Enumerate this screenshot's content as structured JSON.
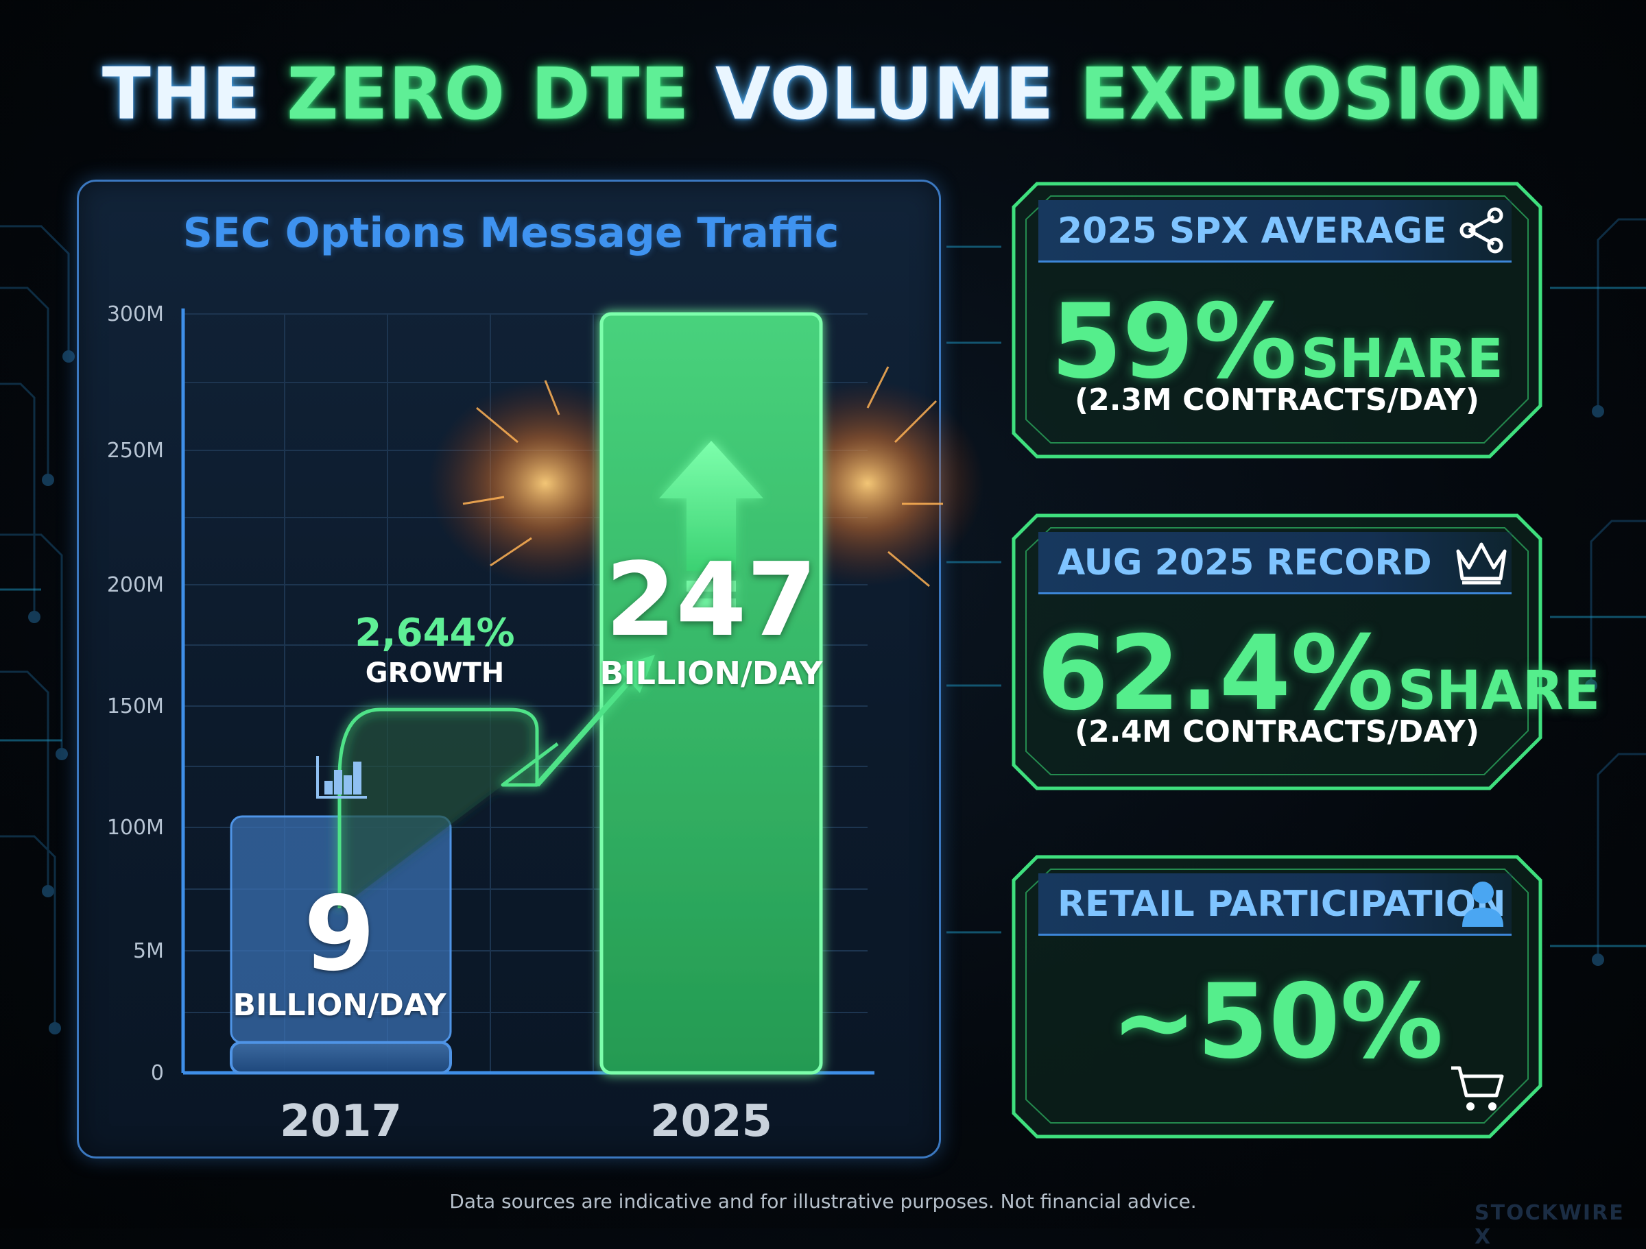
{
  "headline": {
    "parts": [
      "THE",
      "ZERO DTE",
      "VOLUME",
      "EXPLOSION"
    ]
  },
  "chart_data": {
    "type": "bar",
    "title": "SEC Options Message Traffic",
    "categories": [
      "2017",
      "2025"
    ],
    "y_tick_labels": [
      "0",
      "5M",
      "100M",
      "150M",
      "200M",
      "250M",
      "300M"
    ],
    "bar_labels": [
      {
        "value": "9",
        "unit": "BILLION/DAY"
      },
      {
        "value": "247",
        "unit": "BILLION/DAY"
      }
    ],
    "bar_levels": [
      0.04,
      1.0
    ],
    "bar_colors": [
      "#3a6fb0",
      "#3cc96e"
    ],
    "annotation": {
      "value": "2,644%",
      "label": "GROWTH"
    },
    "grid": true
  },
  "cards": [
    {
      "title": "2025 SPX AVERAGE",
      "icon": "share-icon",
      "value": "59%",
      "suffix": "SHARE",
      "sub": "(2.3M CONTRACTS/DAY)"
    },
    {
      "title": "AUG 2025 RECORD",
      "icon": "crown-icon",
      "value": "62.4%",
      "suffix": "SHARE",
      "sub": "(2.4M CONTRACTS/DAY)"
    },
    {
      "title": "RETAIL PARTICIPATION",
      "icon": "user-icon",
      "value": "~50%",
      "icon2": "cart-icon"
    }
  ],
  "colors": {
    "accent_green": "#55ee8c",
    "accent_blue": "#3f93f0"
  },
  "footnote": "Data sources are indicative and for illustrative purposes. Not financial advice.",
  "brand": "STOCKWIRE X"
}
